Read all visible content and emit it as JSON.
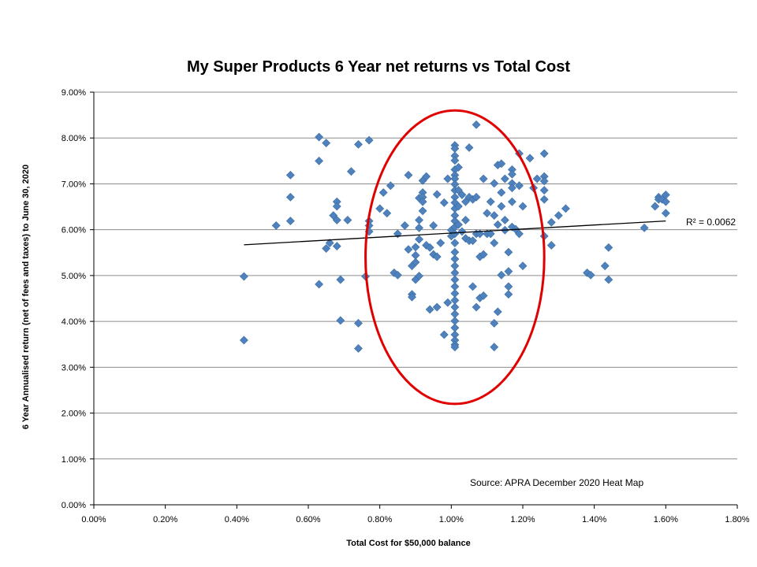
{
  "chart_data": {
    "type": "scatter",
    "title": "My Super Products 6 Year net returns vs Total Cost",
    "xlabel": "Total Cost for $50,000 balance",
    "ylabel": "6 Year Annualised return (net of fees and taxes) to June 30, 2020",
    "xlim": [
      0,
      0.018
    ],
    "ylim": [
      0,
      0.09
    ],
    "x_ticks": [
      "0.00%",
      "0.20%",
      "0.40%",
      "0.60%",
      "0.80%",
      "1.00%",
      "1.20%",
      "1.40%",
      "1.60%",
      "1.80%"
    ],
    "y_ticks": [
      "0.00%",
      "1.00%",
      "2.00%",
      "3.00%",
      "4.00%",
      "5.00%",
      "6.00%",
      "7.00%",
      "8.00%",
      "9.00%"
    ],
    "grid": "horizontal",
    "marker_color": "#4F81BD",
    "trendline": {
      "x": [
        0.0042,
        0.016
      ],
      "y": [
        0.0567,
        0.0619
      ],
      "label": "R² = 0.0062"
    },
    "annotation": "Source: APRA December 2020 Heat Map",
    "highlight_ellipse": {
      "center": [
        0.0101,
        0.054
      ],
      "radius_x": 0.0025,
      "radius_y": 0.032,
      "color": "#E00000"
    },
    "points": [
      [
        0.0042,
        0.0498
      ],
      [
        0.0042,
        0.0359
      ],
      [
        0.0051,
        0.0609
      ],
      [
        0.0055,
        0.0719
      ],
      [
        0.0055,
        0.0671
      ],
      [
        0.0055,
        0.0619
      ],
      [
        0.0063,
        0.0802
      ],
      [
        0.0063,
        0.075
      ],
      [
        0.0063,
        0.0481
      ],
      [
        0.0065,
        0.0789
      ],
      [
        0.0065,
        0.0559
      ],
      [
        0.0066,
        0.0571
      ],
      [
        0.0067,
        0.0631
      ],
      [
        0.0068,
        0.0621
      ],
      [
        0.0068,
        0.0661
      ],
      [
        0.0068,
        0.0651
      ],
      [
        0.0068,
        0.0564
      ],
      [
        0.0069,
        0.0491
      ],
      [
        0.0069,
        0.0402
      ],
      [
        0.0071,
        0.0621
      ],
      [
        0.0072,
        0.0727
      ],
      [
        0.0074,
        0.0786
      ],
      [
        0.0074,
        0.0396
      ],
      [
        0.0074,
        0.0341
      ],
      [
        0.0076,
        0.0498
      ],
      [
        0.0077,
        0.0795
      ],
      [
        0.0077,
        0.0619
      ],
      [
        0.0077,
        0.0609
      ],
      [
        0.0077,
        0.0596
      ],
      [
        0.008,
        0.0646
      ],
      [
        0.0081,
        0.0681
      ],
      [
        0.0082,
        0.0636
      ],
      [
        0.0083,
        0.0696
      ],
      [
        0.0084,
        0.0506
      ],
      [
        0.0085,
        0.0501
      ],
      [
        0.0085,
        0.0591
      ],
      [
        0.0087,
        0.0609
      ],
      [
        0.0088,
        0.0719
      ],
      [
        0.0088,
        0.0557
      ],
      [
        0.0089,
        0.0459
      ],
      [
        0.0089,
        0.0453
      ],
      [
        0.0089,
        0.0521
      ],
      [
        0.009,
        0.0562
      ],
      [
        0.009,
        0.0544
      ],
      [
        0.009,
        0.0529
      ],
      [
        0.009,
        0.0491
      ],
      [
        0.0091,
        0.0669
      ],
      [
        0.0091,
        0.0621
      ],
      [
        0.0091,
        0.0604
      ],
      [
        0.0091,
        0.0579
      ],
      [
        0.0091,
        0.0499
      ],
      [
        0.0092,
        0.0707
      ],
      [
        0.0092,
        0.0681
      ],
      [
        0.0092,
        0.0671
      ],
      [
        0.0092,
        0.0661
      ],
      [
        0.0092,
        0.0641
      ],
      [
        0.0093,
        0.0716
      ],
      [
        0.0093,
        0.0566
      ],
      [
        0.0094,
        0.0561
      ],
      [
        0.0094,
        0.0426
      ],
      [
        0.0095,
        0.0609
      ],
      [
        0.0095,
        0.0546
      ],
      [
        0.0096,
        0.0677
      ],
      [
        0.0096,
        0.0541
      ],
      [
        0.0096,
        0.0431
      ],
      [
        0.0097,
        0.0571
      ],
      [
        0.0098,
        0.0659
      ],
      [
        0.0098,
        0.0371
      ],
      [
        0.0099,
        0.0711
      ],
      [
        0.0099,
        0.0441
      ],
      [
        0.01,
        0.0599
      ],
      [
        0.01,
        0.0586
      ],
      [
        0.0101,
        0.0784
      ],
      [
        0.0101,
        0.0777
      ],
      [
        0.0101,
        0.0761
      ],
      [
        0.0101,
        0.0751
      ],
      [
        0.0101,
        0.0731
      ],
      [
        0.0101,
        0.0719
      ],
      [
        0.0101,
        0.0711
      ],
      [
        0.0101,
        0.0699
      ],
      [
        0.0101,
        0.0686
      ],
      [
        0.0101,
        0.0671
      ],
      [
        0.0101,
        0.0659
      ],
      [
        0.0101,
        0.0646
      ],
      [
        0.0101,
        0.0631
      ],
      [
        0.0101,
        0.0619
      ],
      [
        0.0101,
        0.0606
      ],
      [
        0.0101,
        0.0591
      ],
      [
        0.0101,
        0.0571
      ],
      [
        0.0101,
        0.0551
      ],
      [
        0.0101,
        0.0536
      ],
      [
        0.0101,
        0.0521
      ],
      [
        0.0101,
        0.0506
      ],
      [
        0.0101,
        0.0491
      ],
      [
        0.0101,
        0.0476
      ],
      [
        0.0101,
        0.0461
      ],
      [
        0.0101,
        0.0446
      ],
      [
        0.0101,
        0.0431
      ],
      [
        0.0101,
        0.0416
      ],
      [
        0.0101,
        0.0401
      ],
      [
        0.0101,
        0.0386
      ],
      [
        0.0101,
        0.0371
      ],
      [
        0.0101,
        0.0359
      ],
      [
        0.0101,
        0.0349
      ],
      [
        0.0101,
        0.0344
      ],
      [
        0.0102,
        0.0736
      ],
      [
        0.0102,
        0.0686
      ],
      [
        0.0102,
        0.0651
      ],
      [
        0.0102,
        0.0611
      ],
      [
        0.0103,
        0.0676
      ],
      [
        0.0103,
        0.0596
      ],
      [
        0.0104,
        0.0661
      ],
      [
        0.0104,
        0.0621
      ],
      [
        0.0104,
        0.0581
      ],
      [
        0.0105,
        0.0779
      ],
      [
        0.0105,
        0.0671
      ],
      [
        0.0105,
        0.0576
      ],
      [
        0.0106,
        0.0666
      ],
      [
        0.0106,
        0.0576
      ],
      [
        0.0106,
        0.0476
      ],
      [
        0.0107,
        0.0829
      ],
      [
        0.0107,
        0.0671
      ],
      [
        0.0107,
        0.0591
      ],
      [
        0.0107,
        0.0431
      ],
      [
        0.0108,
        0.0591
      ],
      [
        0.0108,
        0.0541
      ],
      [
        0.0108,
        0.0451
      ],
      [
        0.0109,
        0.0711
      ],
      [
        0.0109,
        0.0546
      ],
      [
        0.0109,
        0.0456
      ],
      [
        0.011,
        0.0636
      ],
      [
        0.011,
        0.0591
      ],
      [
        0.0111,
        0.0661
      ],
      [
        0.0111,
        0.0591
      ],
      [
        0.0112,
        0.0701
      ],
      [
        0.0112,
        0.0631
      ],
      [
        0.0112,
        0.0571
      ],
      [
        0.0112,
        0.0396
      ],
      [
        0.0112,
        0.0344
      ],
      [
        0.0113,
        0.0741
      ],
      [
        0.0113,
        0.0611
      ],
      [
        0.0113,
        0.0421
      ],
      [
        0.0114,
        0.0744
      ],
      [
        0.0114,
        0.0681
      ],
      [
        0.0114,
        0.0651
      ],
      [
        0.0114,
        0.0501
      ],
      [
        0.0115,
        0.0711
      ],
      [
        0.0115,
        0.0621
      ],
      [
        0.0115,
        0.0599
      ],
      [
        0.0116,
        0.0551
      ],
      [
        0.0116,
        0.0509
      ],
      [
        0.0116,
        0.0476
      ],
      [
        0.0116,
        0.0459
      ],
      [
        0.0117,
        0.0731
      ],
      [
        0.0117,
        0.0721
      ],
      [
        0.0117,
        0.0701
      ],
      [
        0.0117,
        0.0691
      ],
      [
        0.0117,
        0.0661
      ],
      [
        0.0117,
        0.0606
      ],
      [
        0.0118,
        0.0601
      ],
      [
        0.0119,
        0.0766
      ],
      [
        0.0119,
        0.0696
      ],
      [
        0.0119,
        0.0591
      ],
      [
        0.012,
        0.0651
      ],
      [
        0.012,
        0.0521
      ],
      [
        0.0122,
        0.0756
      ],
      [
        0.0123,
        0.0691
      ],
      [
        0.0124,
        0.0711
      ],
      [
        0.0126,
        0.0766
      ],
      [
        0.0126,
        0.0716
      ],
      [
        0.0126,
        0.0706
      ],
      [
        0.0126,
        0.0686
      ],
      [
        0.0126,
        0.0666
      ],
      [
        0.0126,
        0.0586
      ],
      [
        0.0128,
        0.0616
      ],
      [
        0.0128,
        0.0566
      ],
      [
        0.013,
        0.0631
      ],
      [
        0.0132,
        0.0646
      ],
      [
        0.0138,
        0.0506
      ],
      [
        0.0139,
        0.0501
      ],
      [
        0.0143,
        0.0521
      ],
      [
        0.0144,
        0.0561
      ],
      [
        0.0144,
        0.0491
      ],
      [
        0.0154,
        0.0604
      ],
      [
        0.0157,
        0.0651
      ],
      [
        0.0158,
        0.0671
      ],
      [
        0.0158,
        0.0666
      ],
      [
        0.0159,
        0.0666
      ],
      [
        0.016,
        0.0676
      ],
      [
        0.016,
        0.0661
      ],
      [
        0.016,
        0.0636
      ]
    ]
  }
}
